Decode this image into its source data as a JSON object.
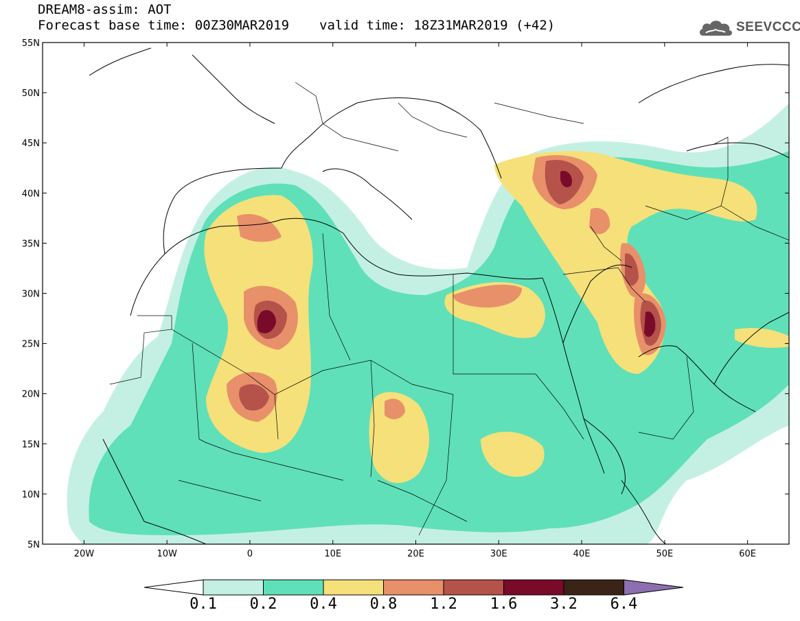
{
  "header": {
    "title": "DREAM8-assim: AOT",
    "base_time_label": "Forecast base time: 00Z30MAR2019",
    "valid_time_label": "valid time: 18Z31MAR2019 (+42)"
  },
  "logo": {
    "text": "SEEVCCC",
    "icon": "cloud-icon"
  },
  "map": {
    "lat_range": [
      5,
      55
    ],
    "lon_range": [
      -25,
      65
    ],
    "lat_ticks": [
      "55N",
      "50N",
      "45N",
      "40N",
      "35N",
      "30N",
      "25N",
      "20N",
      "15N",
      "10N",
      "5N"
    ],
    "lon_ticks": [
      "20W",
      "10W",
      "0",
      "10E",
      "20E",
      "30E",
      "40E",
      "50E",
      "60E"
    ]
  },
  "colorbar": {
    "levels": [
      "0.1",
      "0.2",
      "0.4",
      "0.8",
      "1.2",
      "1.6",
      "3.2",
      "6.4"
    ],
    "colors": [
      "#ffffff",
      "#c4f0e3",
      "#5fe0b8",
      "#f5e07a",
      "#e8906a",
      "#b5524a",
      "#7a0a2a",
      "#3a2418",
      "#8c6fb0"
    ]
  }
}
